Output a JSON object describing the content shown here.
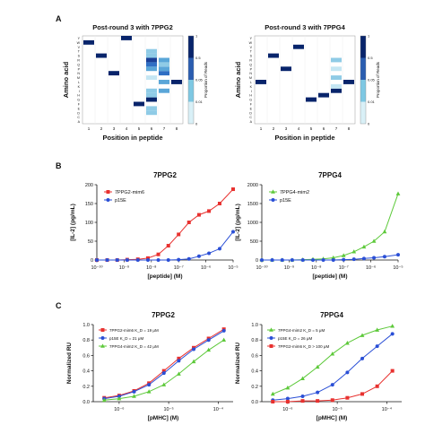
{
  "figure": {
    "panel_labels": [
      "A",
      "B",
      "C"
    ]
  },
  "chart_data": [
    {
      "panel": "A",
      "type": "heatmap",
      "title": "Post-round 3 with 7PPG2",
      "xlabel": "Position in peptide",
      "ylabel": "Amino acid",
      "x_categories": [
        "1",
        "2",
        "3",
        "4",
        "5",
        "6",
        "7",
        "8"
      ],
      "y_categories": [
        "A",
        "C",
        "D",
        "E",
        "F",
        "G",
        "H",
        "I",
        "K",
        "L",
        "M",
        "N",
        "P",
        "Q",
        "R",
        "S",
        "T",
        "V",
        "W",
        "Y"
      ],
      "colorbar": {
        "label": "Proportion of Reads",
        "ticks": [
          "1",
          "0.5",
          "0.05",
          "0.01",
          "0"
        ],
        "colors": [
          "#ffffff",
          "#d9f0f7",
          "#7ec8e3",
          "#2a5db0",
          "#08246b"
        ]
      },
      "cells": [
        {
          "pos": "1",
          "aa": "W",
          "value": 0.9
        },
        {
          "pos": "2",
          "aa": "S",
          "value": 0.9
        },
        {
          "pos": "3",
          "aa": "N",
          "value": 0.8
        },
        {
          "pos": "4",
          "aa": "Y",
          "value": 0.9
        },
        {
          "pos": "5",
          "aa": "F",
          "value": 0.9
        },
        {
          "pos": "6",
          "aa": "D",
          "value": 0.05
        },
        {
          "pos": "6",
          "aa": "E",
          "value": 0.04
        },
        {
          "pos": "6",
          "aa": "G",
          "value": 0.6
        },
        {
          "pos": "6",
          "aa": "H",
          "value": 0.04
        },
        {
          "pos": "6",
          "aa": "I",
          "value": 0.05
        },
        {
          "pos": "6",
          "aa": "M",
          "value": 0.03
        },
        {
          "pos": "6",
          "aa": "P",
          "value": 0.08
        },
        {
          "pos": "6",
          "aa": "Q",
          "value": 0.1
        },
        {
          "pos": "6",
          "aa": "R",
          "value": 0.2
        },
        {
          "pos": "6",
          "aa": "S",
          "value": 0.05
        },
        {
          "pos": "6",
          "aa": "T",
          "value": 0.04
        },
        {
          "pos": "7",
          "aa": "I",
          "value": 0.07
        },
        {
          "pos": "7",
          "aa": "L",
          "value": 0.06
        },
        {
          "pos": "7",
          "aa": "N",
          "value": 0.15
        },
        {
          "pos": "7",
          "aa": "P",
          "value": 0.07
        },
        {
          "pos": "7",
          "aa": "Q",
          "value": 0.05
        },
        {
          "pos": "7",
          "aa": "R",
          "value": 0.08
        },
        {
          "pos": "8",
          "aa": "L",
          "value": 0.9
        }
      ]
    },
    {
      "panel": "A",
      "type": "heatmap",
      "title": "Post-round 3 with 7PPG4",
      "xlabel": "Position in peptide",
      "ylabel": "Amino acid",
      "x_categories": [
        "1",
        "2",
        "3",
        "4",
        "5",
        "6",
        "7",
        "8"
      ],
      "y_categories": [
        "A",
        "C",
        "D",
        "E",
        "F",
        "G",
        "H",
        "I",
        "K",
        "L",
        "M",
        "N",
        "P",
        "Q",
        "R",
        "S",
        "T",
        "V",
        "W",
        "Y"
      ],
      "colorbar": {
        "label": "Proportion of Reads",
        "ticks": [
          "1",
          "0.5",
          "0.05",
          "0.01",
          "0"
        ],
        "colors": [
          "#ffffff",
          "#d9f0f7",
          "#7ec8e3",
          "#2a5db0",
          "#08246b"
        ]
      },
      "cells": [
        {
          "pos": "1",
          "aa": "L",
          "value": 0.9
        },
        {
          "pos": "2",
          "aa": "S",
          "value": 0.9
        },
        {
          "pos": "3",
          "aa": "P",
          "value": 0.9
        },
        {
          "pos": "4",
          "aa": "V",
          "value": 0.9
        },
        {
          "pos": "5",
          "aa": "G",
          "value": 0.9
        },
        {
          "pos": "6",
          "aa": "H",
          "value": 0.9
        },
        {
          "pos": "7",
          "aa": "I",
          "value": 0.5
        },
        {
          "pos": "7",
          "aa": "K",
          "value": 0.03
        },
        {
          "pos": "7",
          "aa": "M",
          "value": 0.05
        },
        {
          "pos": "7",
          "aa": "P",
          "value": 0.03
        },
        {
          "pos": "7",
          "aa": "R",
          "value": 0.05
        },
        {
          "pos": "8",
          "aa": "L",
          "value": 0.9
        }
      ]
    },
    {
      "panel": "B",
      "type": "line",
      "title": "7PPG2",
      "xlabel": "[peptide] (M)",
      "ylabel": "[IL-2] (pg/mL)",
      "x_scale": "log",
      "xlim": [
        1e-10,
        1e-05
      ],
      "ylim": [
        0,
        200
      ],
      "x_ticks": [
        1e-10,
        1e-09,
        1e-08,
        1e-07,
        1e-06,
        1e-05
      ],
      "x_tick_labels": [
        "10⁻¹⁰",
        "10⁻⁹",
        "10⁻⁸",
        "10⁻⁷",
        "10⁻⁶",
        "10⁻⁵"
      ],
      "y_ticks": [
        0,
        50,
        100,
        150,
        200
      ],
      "y_tick_labels": [
        "0",
        "50",
        "100",
        "150",
        "200"
      ],
      "legend": "top-left",
      "series": [
        {
          "name": "7PPG2-mim6",
          "color": "#e8312f",
          "marker": "square",
          "x": [
            1e-10,
            2.4e-10,
            5.6e-10,
            1.3e-09,
            3.2e-09,
            7.5e-09,
            1.8e-08,
            4.2e-08,
            1e-07,
            2.4e-07,
            5.6e-07,
            1.3e-06,
            3.2e-06,
            1e-05
          ],
          "y": [
            0,
            0,
            0,
            1,
            2,
            5,
            15,
            38,
            68,
            100,
            120,
            130,
            150,
            188
          ]
        },
        {
          "name": "p15E",
          "color": "#2a4fd6",
          "marker": "circle",
          "x": [
            1e-10,
            2.4e-10,
            5.6e-10,
            1.3e-09,
            3.2e-09,
            7.5e-09,
            1.8e-08,
            4.2e-08,
            1e-07,
            2.4e-07,
            5.6e-07,
            1.3e-06,
            3.2e-06,
            1e-05
          ],
          "y": [
            0,
            0,
            0,
            0,
            0,
            0,
            0,
            0,
            1,
            3,
            10,
            18,
            30,
            75
          ]
        }
      ]
    },
    {
      "panel": "B",
      "type": "line",
      "title": "7PPG4",
      "xlabel": "[peptide] (M)",
      "ylabel": "[IL-2] (pg/mL)",
      "x_scale": "log",
      "xlim": [
        1e-10,
        1e-05
      ],
      "ylim": [
        0,
        2000
      ],
      "x_ticks": [
        1e-10,
        1e-09,
        1e-08,
        1e-07,
        1e-06,
        1e-05
      ],
      "x_tick_labels": [
        "10⁻¹⁰",
        "10⁻⁹",
        "10⁻⁸",
        "10⁻⁷",
        "10⁻⁶",
        "10⁻⁵"
      ],
      "y_ticks": [
        0,
        500,
        1000,
        1500,
        2000
      ],
      "y_tick_labels": [
        "0",
        "500",
        "1000",
        "1500",
        "2000"
      ],
      "legend": "top-left",
      "series": [
        {
          "name": "7PPG4-mim2",
          "color": "#5dc93a",
          "marker": "triangle",
          "x": [
            1e-10,
            2.4e-10,
            5.6e-10,
            1.3e-09,
            3.2e-09,
            7.5e-09,
            1.8e-08,
            4.2e-08,
            1e-07,
            2.4e-07,
            5.6e-07,
            1.3e-06,
            3.2e-06,
            1e-05
          ],
          "y": [
            0,
            0,
            0,
            0,
            10,
            20,
            30,
            60,
            120,
            220,
            350,
            500,
            750,
            1760
          ]
        },
        {
          "name": "p15E",
          "color": "#2a4fd6",
          "marker": "circle",
          "x": [
            1e-10,
            2.4e-10,
            5.6e-10,
            1.3e-09,
            3.2e-09,
            7.5e-09,
            1.8e-08,
            4.2e-08,
            1e-07,
            2.4e-07,
            5.6e-07,
            1.3e-06,
            3.2e-06,
            1e-05
          ],
          "y": [
            0,
            0,
            0,
            0,
            0,
            0,
            0,
            0,
            10,
            20,
            40,
            60,
            90,
            140
          ]
        }
      ]
    },
    {
      "panel": "C",
      "type": "line",
      "title": "7PPG2",
      "xlabel": "[pMHC] (M)",
      "ylabel": "Normalized RU",
      "x_scale": "log",
      "xlim": [
        3e-07,
        0.0002
      ],
      "ylim": [
        0,
        1.0
      ],
      "x_ticks": [
        1e-06,
        1e-05,
        0.0001
      ],
      "x_tick_labels": [
        "10⁻⁶",
        "10⁻⁵",
        "10⁻⁴"
      ],
      "y_ticks": [
        0,
        0.2,
        0.4,
        0.6,
        0.8,
        1.0
      ],
      "y_tick_labels": [
        "0.0",
        "0.2",
        "0.4",
        "0.6",
        "0.8",
        "1.0"
      ],
      "legend": "top-left",
      "series": [
        {
          "name": "7PPG2-mim6 K_D = 19 μM",
          "color": "#e8312f",
          "marker": "square",
          "x": [
            5e-07,
            1e-06,
            2e-06,
            4e-06,
            8e-06,
            1.6e-05,
            3.2e-05,
            6.4e-05,
            0.00013
          ],
          "y": [
            0.05,
            0.08,
            0.14,
            0.24,
            0.4,
            0.56,
            0.7,
            0.82,
            0.94
          ]
        },
        {
          "name": "p15E K_D = 21 μM",
          "color": "#2a4fd6",
          "marker": "circle",
          "x": [
            5e-07,
            1e-06,
            2e-06,
            4e-06,
            8e-06,
            1.6e-05,
            3.2e-05,
            6.4e-05,
            0.00013
          ],
          "y": [
            0.04,
            0.07,
            0.13,
            0.22,
            0.37,
            0.53,
            0.68,
            0.8,
            0.92
          ]
        },
        {
          "name": "7PPG4-mim2 K_D = 42 μM",
          "color": "#5dc93a",
          "marker": "triangle",
          "x": [
            5e-07,
            1e-06,
            2e-06,
            4e-06,
            8e-06,
            1.6e-05,
            3.2e-05,
            6.4e-05,
            0.00013
          ],
          "y": [
            0.02,
            0.04,
            0.07,
            0.13,
            0.22,
            0.36,
            0.52,
            0.67,
            0.8
          ]
        }
      ]
    },
    {
      "panel": "C",
      "type": "line",
      "title": "7PPG4",
      "xlabel": "[pMHC] (M)",
      "ylabel": "Normalized RU",
      "x_scale": "log",
      "xlim": [
        3e-07,
        0.0002
      ],
      "ylim": [
        0,
        1.0
      ],
      "x_ticks": [
        1e-06,
        1e-05,
        0.0001
      ],
      "x_tick_labels": [
        "10⁻⁶",
        "10⁻⁵",
        "10⁻⁴"
      ],
      "y_ticks": [
        0,
        0.2,
        0.4,
        0.6,
        0.8,
        1.0
      ],
      "y_tick_labels": [
        "0.0",
        "0.2",
        "0.4",
        "0.6",
        "0.8",
        "1.0"
      ],
      "legend": "top-left",
      "series": [
        {
          "name": "7PPG4-mim2 K_D = 5 μM",
          "color": "#5dc93a",
          "marker": "triangle",
          "x": [
            5e-07,
            1e-06,
            2e-06,
            4e-06,
            8e-06,
            1.6e-05,
            3.2e-05,
            6.4e-05,
            0.00013
          ],
          "y": [
            0.1,
            0.18,
            0.3,
            0.45,
            0.62,
            0.76,
            0.86,
            0.93,
            0.98
          ]
        },
        {
          "name": "p15E K_D = 26 μM",
          "color": "#2a4fd6",
          "marker": "circle",
          "x": [
            5e-07,
            1e-06,
            2e-06,
            4e-06,
            8e-06,
            1.6e-05,
            3.2e-05,
            6.4e-05,
            0.00013
          ],
          "y": [
            0.02,
            0.04,
            0.07,
            0.12,
            0.22,
            0.38,
            0.56,
            0.72,
            0.88
          ]
        },
        {
          "name": "7PPG2-mim6 K_D > 100 μM",
          "color": "#e8312f",
          "marker": "square",
          "x": [
            5e-07,
            1e-06,
            2e-06,
            4e-06,
            8e-06,
            1.6e-05,
            3.2e-05,
            6.4e-05,
            0.00013
          ],
          "y": [
            0.0,
            0.0,
            0.01,
            0.01,
            0.02,
            0.05,
            0.1,
            0.2,
            0.4
          ]
        }
      ]
    }
  ]
}
